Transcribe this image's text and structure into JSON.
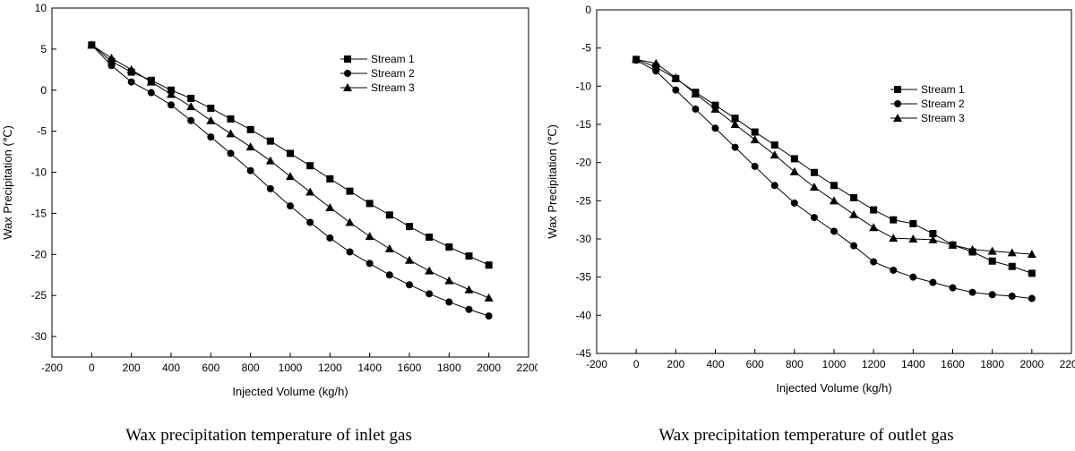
{
  "chart_data": [
    {
      "type": "line",
      "caption": "Wax precipitation temperature of inlet gas",
      "xlabel": "Injected Volume (kg/h)",
      "ylabel": "Wax Precipitation (℃)",
      "xlim": [
        -200,
        2200
      ],
      "ylim": [
        -32.5,
        10
      ],
      "xticks": [
        -200,
        0,
        200,
        400,
        600,
        800,
        1000,
        1200,
        1400,
        1600,
        1800,
        2000,
        2200
      ],
      "yticks": [
        10,
        5,
        0,
        -5,
        -10,
        -15,
        -20,
        -25,
        -30
      ],
      "legend_position": "top-right",
      "x": [
        0,
        100,
        200,
        300,
        400,
        500,
        600,
        700,
        800,
        900,
        1000,
        1100,
        1200,
        1300,
        1400,
        1500,
        1600,
        1700,
        1800,
        1900,
        2000
      ],
      "series": [
        {
          "name": "Stream 1",
          "marker": "square",
          "values": [
            5.5,
            3.5,
            2.2,
            1.2,
            0.0,
            -1.0,
            -2.2,
            -3.5,
            -4.8,
            -6.2,
            -7.7,
            -9.2,
            -10.8,
            -12.3,
            -13.8,
            -15.2,
            -16.6,
            -17.9,
            -19.1,
            -20.2,
            -21.3
          ]
        },
        {
          "name": "Stream 2",
          "marker": "circle",
          "values": [
            5.5,
            3.0,
            1.0,
            -0.3,
            -1.8,
            -3.7,
            -5.7,
            -7.7,
            -9.8,
            -12.0,
            -14.1,
            -16.1,
            -18.0,
            -19.7,
            -21.1,
            -22.5,
            -23.7,
            -24.8,
            -25.8,
            -26.7,
            -27.5
          ]
        },
        {
          "name": "Stream 3",
          "marker": "triangle",
          "values": [
            5.5,
            3.9,
            2.5,
            1.0,
            -0.5,
            -2.0,
            -3.7,
            -5.3,
            -6.9,
            -8.6,
            -10.5,
            -12.4,
            -14.3,
            -16.1,
            -17.8,
            -19.3,
            -20.7,
            -22.0,
            -23.2,
            -24.3,
            -25.3
          ]
        }
      ]
    },
    {
      "type": "line",
      "caption": "Wax precipitation temperature of outlet gas",
      "xlabel": "Injected Volume (kg/h)",
      "ylabel": "Wax Precipitation (℃)",
      "xlim": [
        -200,
        2200
      ],
      "ylim": [
        -45,
        0
      ],
      "xticks": [
        -200,
        0,
        200,
        400,
        600,
        800,
        1000,
        1200,
        1400,
        1600,
        1800,
        2000,
        2200
      ],
      "yticks": [
        0,
        -5,
        -10,
        -15,
        -20,
        -25,
        -30,
        -35,
        -40,
        -45
      ],
      "legend_position": "top-right",
      "x": [
        0,
        100,
        200,
        300,
        400,
        500,
        600,
        700,
        800,
        900,
        1000,
        1100,
        1200,
        1300,
        1400,
        1500,
        1600,
        1700,
        1800,
        1900,
        2000
      ],
      "series": [
        {
          "name": "Stream 1",
          "marker": "square",
          "values": [
            -6.5,
            -7.5,
            -9.0,
            -10.8,
            -12.5,
            -14.2,
            -16.0,
            -17.7,
            -19.5,
            -21.3,
            -23.0,
            -24.6,
            -26.2,
            -27.5,
            -28.0,
            -29.3,
            -30.8,
            -31.7,
            -32.9,
            -33.6,
            -34.5
          ]
        },
        {
          "name": "Stream 2",
          "marker": "circle",
          "values": [
            -6.6,
            -8.0,
            -10.5,
            -13.0,
            -15.5,
            -18.0,
            -20.5,
            -23.0,
            -25.3,
            -27.2,
            -29.0,
            -30.9,
            -33.0,
            -34.1,
            -35.0,
            -35.7,
            -36.4,
            -37.0,
            -37.3,
            -37.5,
            -37.8
          ]
        },
        {
          "name": "Stream 3",
          "marker": "triangle",
          "values": [
            -6.5,
            -7.0,
            -8.9,
            -11.0,
            -13.0,
            -15.0,
            -17.0,
            -19.0,
            -21.2,
            -23.2,
            -25.0,
            -26.8,
            -28.5,
            -29.9,
            -30.0,
            -30.1,
            -30.8,
            -31.4,
            -31.6,
            -31.8,
            -32.0
          ]
        }
      ]
    }
  ]
}
